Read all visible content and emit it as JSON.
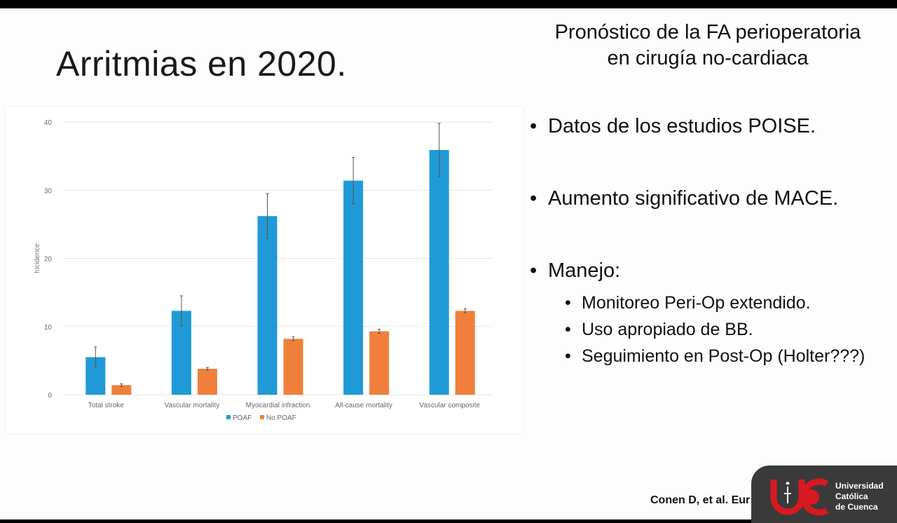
{
  "slide": {
    "title": "Arritmias en 2020.",
    "heading_line1": "Pronóstico de la FA perioperatoria",
    "heading_line2": "en cirugía no-cardiaca",
    "bullets": [
      "Datos de los estudios POISE.",
      "Aumento significativo de MACE.",
      "Manejo:"
    ],
    "sub_bullets": [
      "Monitoreo Peri-Op extendido.",
      "Uso apropiado de BB.",
      "Seguimiento en Post-Op (Holter???)"
    ],
    "bullet_glyph": "•",
    "citation": "Conen D, et al. Eur"
  },
  "logo": {
    "line1": "Universidad",
    "line2": "Católica",
    "line3": "de Cuenca",
    "icon": "uc-torch-logo-icon",
    "color_red": "#d71920",
    "color_bg": "#3a3a3a"
  },
  "chart_data": {
    "type": "bar",
    "title": "",
    "xlabel": "",
    "ylabel": "Incidence",
    "ylim": [
      0,
      40
    ],
    "yticks": [
      0,
      10,
      20,
      30,
      40
    ],
    "grid": true,
    "legend_position": "bottom",
    "categories": [
      "Total stroke",
      "Vascular mortality",
      "Myocardial infraction",
      "All-cause mortality",
      "Vascular composite"
    ],
    "series": [
      {
        "name": "POAF",
        "color": "#1f9ad6",
        "values": [
          5.5,
          12.3,
          26.2,
          31.4,
          35.9
        ],
        "error": [
          1.5,
          2.2,
          3.3,
          3.4,
          3.9
        ]
      },
      {
        "name": "No POAF",
        "color": "#f07f3c",
        "values": [
          1.4,
          3.8,
          8.2,
          9.3,
          12.3
        ],
        "error": [
          0.2,
          0.2,
          0.3,
          0.3,
          0.3
        ]
      }
    ]
  }
}
